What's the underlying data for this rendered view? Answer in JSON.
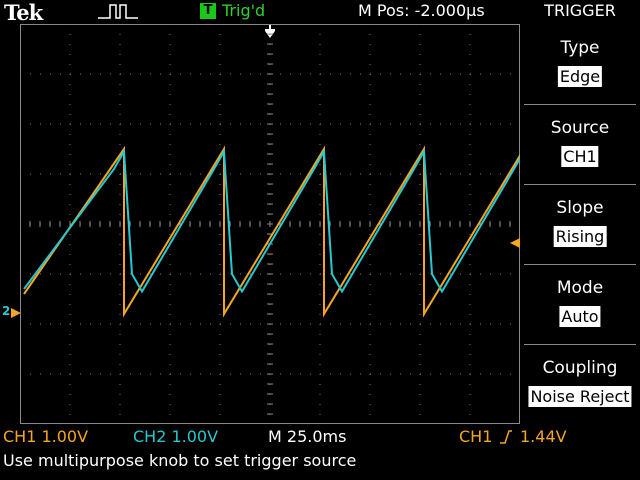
{
  "header": {
    "brand": "Tek",
    "acquisition_icon": "pulse-run-icon",
    "trigger_badge": "T",
    "trigger_state": "Trig'd",
    "horizontal_position": "M Pos: -2.000µs",
    "menu_title": "TRIGGER"
  },
  "menu": {
    "items": [
      {
        "label": "Type",
        "value": "Edge"
      },
      {
        "label": "Source",
        "value": "CH1"
      },
      {
        "label": "Slope",
        "value": "Rising"
      },
      {
        "label": "Mode",
        "value": "Auto"
      },
      {
        "label": "Coupling",
        "value": "Noise Reject"
      }
    ]
  },
  "status": {
    "ch1_scale": "CH1  1.00V",
    "ch2_scale": "CH2  1.00V",
    "timebase": "M 25.0ms",
    "trigger_source": "CH1",
    "trigger_level": "1.44V"
  },
  "help_text": "Use multipurpose knob to set trigger source",
  "markers": {
    "channel_ground": "2",
    "trigger_level_marker": "trigger-level-arrow-icon"
  },
  "colors": {
    "ch1": "#f5a623",
    "ch2": "#27c8d0",
    "trig_green": "#19c819"
  },
  "chart_data": {
    "type": "line",
    "xlabel": "",
    "ylabel": "",
    "grid": true,
    "xlim": [
      -127,
      123
    ],
    "ylim": [
      -4,
      4
    ],
    "series": [
      {
        "values_note": "",
        "color": "#f5a623",
        "x": [
          -125,
          -75,
          -75,
          -25,
          -25,
          25,
          25,
          75,
          75,
          125
        ],
        "y": [
          -1.4,
          1.5,
          -1.8,
          1.5,
          -1.8,
          1.5,
          -1.8,
          1.5,
          -1.8,
          1.5
        ]
      },
      {
        "color": "#27c8d0",
        "x": [
          -125,
          -80,
          -75,
          -71,
          -66,
          -30,
          -25,
          -21,
          -16,
          20,
          25,
          29,
          34,
          70,
          75,
          79,
          84,
          120,
          125
        ],
        "y": [
          -1.3,
          1.1,
          1.45,
          -1.0,
          -1.35,
          1.1,
          1.45,
          -1.0,
          -1.35,
          1.1,
          1.45,
          -1.0,
          -1.35,
          1.1,
          1.45,
          -1.0,
          -1.35,
          1.1,
          1.45
        ]
      }
    ]
  }
}
